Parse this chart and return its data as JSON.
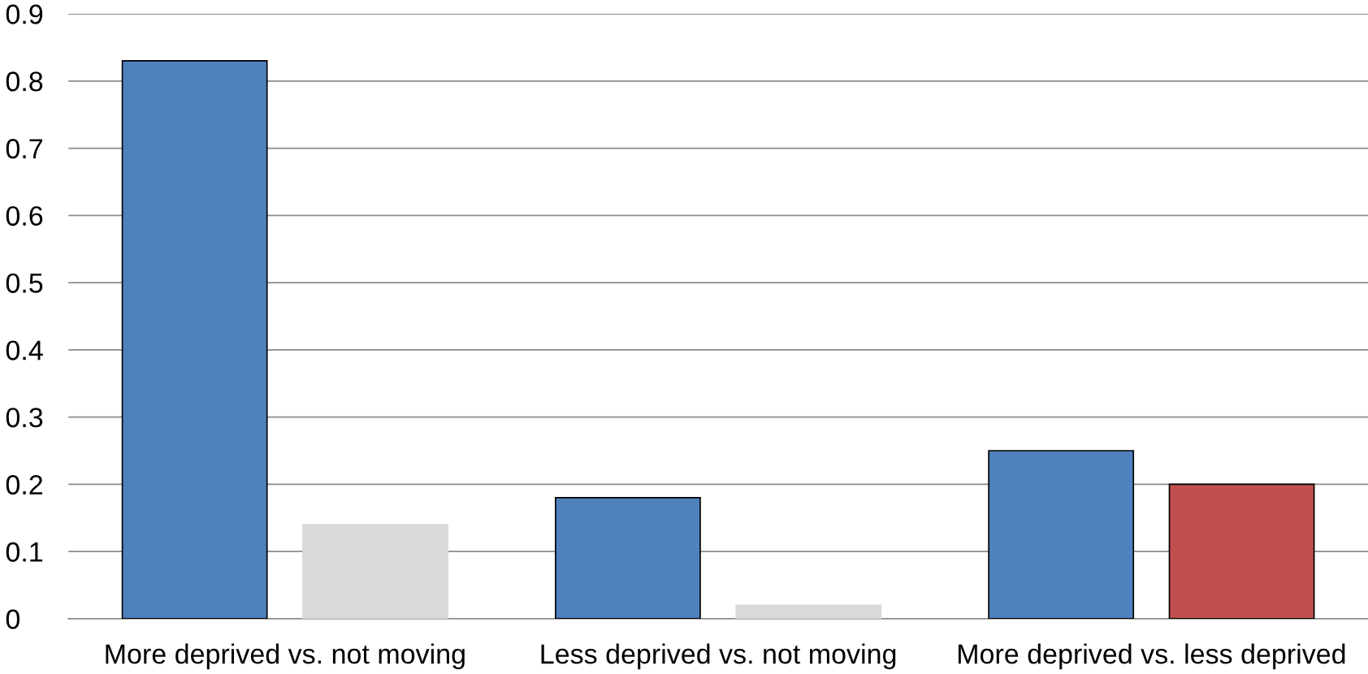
{
  "chart_data": {
    "type": "bar",
    "categories": [
      "More deprived vs. not moving",
      "Less deprived vs. not moving",
      "More deprived vs. less deprived"
    ],
    "series": [
      {
        "colors": [
          "#4f81bd",
          "#4f81bd",
          "#4f81bd"
        ],
        "values": [
          0.83,
          0.18,
          0.25
        ]
      },
      {
        "colors": [
          "#d9d9d9",
          "#d9d9d9",
          "#c0504d"
        ],
        "values": [
          0.14,
          0.02,
          0.2
        ]
      }
    ],
    "ylim": [
      0,
      0.9
    ],
    "yticks": [
      0,
      0.1,
      0.2,
      0.3,
      0.4,
      0.5,
      0.6,
      0.7,
      0.8,
      0.9
    ],
    "grid": "y"
  }
}
